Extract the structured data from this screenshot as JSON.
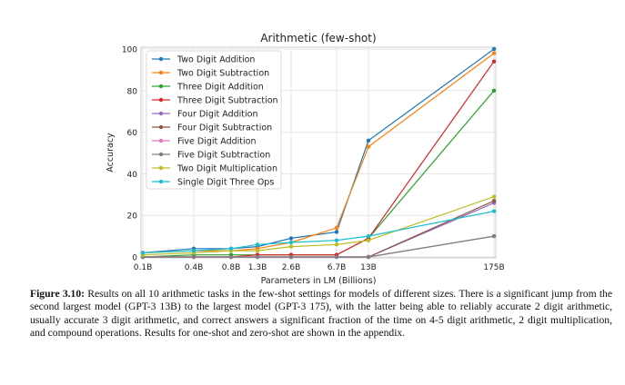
{
  "chart_data": {
    "type": "line",
    "title": "Arithmetic (few-shot)",
    "xlabel": "Parameters in LM (Billions)",
    "ylabel": "Accuracy",
    "x_tick_labels": [
      "0.1B",
      "0.4B",
      "0.8B",
      "1.3B",
      "2.6B",
      "6.7B",
      "13B",
      "175B"
    ],
    "y_ticks": [
      0,
      20,
      40,
      60,
      80,
      100
    ],
    "ylim": [
      0,
      100
    ],
    "grid": true,
    "legend_position": "top-left",
    "series": [
      {
        "name": "Two Digit Addition",
        "color": "#1f77b4",
        "values": [
          2,
          4,
          4,
          5,
          9,
          12,
          56,
          100
        ]
      },
      {
        "name": "Two Digit Subtraction",
        "color": "#ff7f0e",
        "values": [
          2,
          3,
          3,
          4,
          7,
          14,
          53,
          98
        ]
      },
      {
        "name": "Three Digit Addition",
        "color": "#2ca02c",
        "values": [
          0,
          1,
          1,
          1,
          1,
          1,
          9,
          80
        ]
      },
      {
        "name": "Three Digit Subtraction",
        "color": "#d62728",
        "values": [
          0,
          0,
          0,
          1,
          1,
          1,
          9,
          94
        ]
      },
      {
        "name": "Four Digit Addition",
        "color": "#9467bd",
        "values": [
          0,
          0,
          0,
          0,
          0,
          0,
          0,
          26
        ]
      },
      {
        "name": "Four Digit Subtraction",
        "color": "#8c564b",
        "values": [
          0,
          0,
          0,
          0,
          0,
          0,
          0,
          27
        ]
      },
      {
        "name": "Five Digit Addition",
        "color": "#e377c2",
        "values": [
          0,
          0,
          0,
          0,
          0,
          0,
          0,
          10
        ]
      },
      {
        "name": "Five Digit Subtraction",
        "color": "#7f7f7f",
        "values": [
          0,
          0,
          0,
          0,
          0,
          0,
          0,
          10
        ]
      },
      {
        "name": "Two Digit Multiplication",
        "color": "#bcbd22",
        "values": [
          1,
          2,
          3,
          3,
          5,
          6,
          8,
          29
        ]
      },
      {
        "name": "Single Digit Three Ops",
        "color": "#17becf",
        "values": [
          2,
          3,
          4,
          6,
          7,
          8,
          10,
          22
        ]
      }
    ]
  },
  "caption": {
    "label": "Figure 3.10:",
    "text": "Results on all 10 arithmetic tasks in the few-shot settings for models of different sizes. There is a significant jump from the second largest model (GPT-3 13B) to the largest model (GPT-3 175), with the latter being able to reliably accurate 2 digit arithmetic, usually accurate 3 digit arithmetic, and correct answers a significant fraction of the time on 4-5 digit arithmetic, 2 digit multiplication, and compound operations. Results for one-shot and zero-shot are shown in the appendix."
  }
}
